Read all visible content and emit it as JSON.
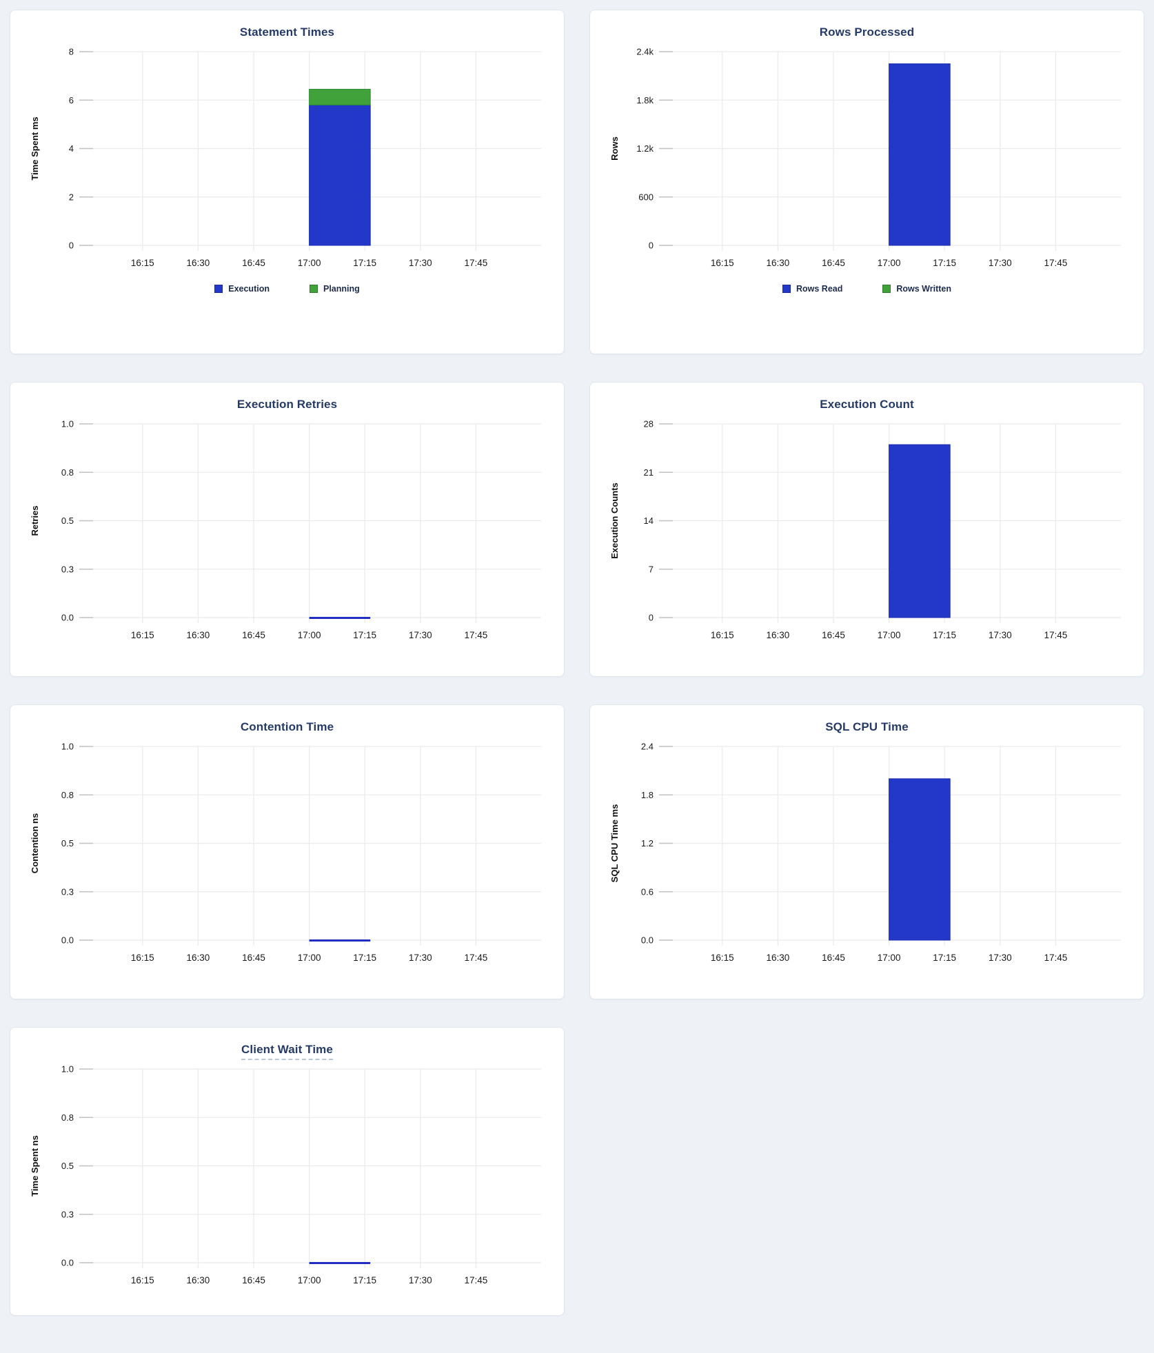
{
  "page": {
    "background": "#eef2f7",
    "panel_background": "#ffffff",
    "panel_border": "#e2e7ed",
    "title_color": "#263a66",
    "grid_color": "#ebebeb",
    "tick_stub_color": "#c2c2c2",
    "tick_label_color": "#1a1a1a",
    "bar_blue": "#2338c8",
    "bar_green": "#41a23c",
    "zero_line_color": "#222ec2"
  },
  "chart_data": [
    {
      "type": "bar",
      "title": "Statement Times",
      "ylabel": "Time Spent ms",
      "ymax": 8,
      "yticks": [
        "0",
        "2",
        "4",
        "6",
        "8"
      ],
      "xticks": [
        "16:15",
        "16:30",
        "16:45",
        "17:00",
        "17:15",
        "17:30",
        "17:45"
      ],
      "bar_span": {
        "from": "17:00",
        "to": "17:15"
      },
      "series": [
        {
          "name": "Execution",
          "value": 5.8,
          "color": "#2338c8",
          "border": "#1b2cb0"
        },
        {
          "name": "Planning",
          "value": 0.65,
          "color": "#41a23c",
          "border": "#2f8a33"
        }
      ],
      "legend": [
        {
          "label": "Execution",
          "color": "#2338c8"
        },
        {
          "label": "Planning",
          "color": "#41a23c"
        }
      ],
      "zero_marker": false,
      "grid": true,
      "legend_position": "bottom"
    },
    {
      "type": "bar",
      "title": "Rows Processed",
      "ylabel": "Rows",
      "ymax": 2400,
      "yticks": [
        "0",
        "600",
        "1.2k",
        "1.8k",
        "2.4k"
      ],
      "xticks": [
        "16:15",
        "16:30",
        "16:45",
        "17:00",
        "17:15",
        "17:30",
        "17:45"
      ],
      "bar_span": {
        "from": "17:00",
        "to": "17:15"
      },
      "series": [
        {
          "name": "Rows Read",
          "value": 2250,
          "color": "#2338c8",
          "border": "#1b2cb0"
        },
        {
          "name": "Rows Written",
          "value": 0,
          "color": "#41a23c",
          "border": "#2f8a33"
        }
      ],
      "legend": [
        {
          "label": "Rows Read",
          "color": "#2338c8"
        },
        {
          "label": "Rows Written",
          "color": "#41a23c"
        }
      ],
      "zero_marker": false,
      "grid": true,
      "legend_position": "bottom"
    },
    {
      "type": "bar",
      "title": "Execution Retries",
      "ylabel": "Retries",
      "ymax": 1.0,
      "yticks": [
        "0.0",
        "0.3",
        "0.5",
        "0.8",
        "1.0"
      ],
      "xticks": [
        "16:15",
        "16:30",
        "16:45",
        "17:00",
        "17:15",
        "17:30",
        "17:45"
      ],
      "bar_span": {
        "from": "17:00",
        "to": "17:15"
      },
      "series": [
        {
          "name": "Retries",
          "value": 0,
          "color": "#2338c8",
          "border": "#1b2cb0"
        }
      ],
      "legend": null,
      "zero_marker": true,
      "grid": true,
      "legend_position": "none"
    },
    {
      "type": "bar",
      "title": "Execution Count",
      "ylabel": "Execution Counts",
      "ymax": 28,
      "yticks": [
        "0",
        "7",
        "14",
        "21",
        "28"
      ],
      "xticks": [
        "16:15",
        "16:30",
        "16:45",
        "17:00",
        "17:15",
        "17:30",
        "17:45"
      ],
      "bar_span": {
        "from": "17:00",
        "to": "17:15"
      },
      "series": [
        {
          "name": "Execution Count",
          "value": 25,
          "color": "#2338c8",
          "border": "#1b2cb0"
        }
      ],
      "legend": null,
      "zero_marker": false,
      "grid": true,
      "legend_position": "none"
    },
    {
      "type": "bar",
      "title": "Contention Time",
      "ylabel": "Contention ns",
      "ymax": 1.0,
      "yticks": [
        "0.0",
        "0.3",
        "0.5",
        "0.8",
        "1.0"
      ],
      "xticks": [
        "16:15",
        "16:30",
        "16:45",
        "17:00",
        "17:15",
        "17:30",
        "17:45"
      ],
      "bar_span": {
        "from": "17:00",
        "to": "17:15"
      },
      "series": [
        {
          "name": "Contention",
          "value": 0,
          "color": "#2338c8",
          "border": "#1b2cb0"
        }
      ],
      "legend": null,
      "zero_marker": true,
      "grid": true,
      "legend_position": "none"
    },
    {
      "type": "bar",
      "title": "SQL CPU Time",
      "ylabel": "SQL CPU Time ms",
      "ymax": 2.4,
      "yticks": [
        "0.0",
        "0.6",
        "1.2",
        "1.8",
        "2.4"
      ],
      "xticks": [
        "16:15",
        "16:30",
        "16:45",
        "17:00",
        "17:15",
        "17:30",
        "17:45"
      ],
      "bar_span": {
        "from": "17:00",
        "to": "17:15"
      },
      "series": [
        {
          "name": "SQL CPU Time",
          "value": 2.0,
          "color": "#2338c8",
          "border": "#1b2cb0"
        }
      ],
      "legend": null,
      "zero_marker": false,
      "grid": true,
      "legend_position": "none"
    },
    {
      "type": "bar",
      "title": "Client Wait Time",
      "title_tooltip_underline": true,
      "ylabel": "Time Spent ns",
      "ymax": 1.0,
      "yticks": [
        "0.0",
        "0.3",
        "0.5",
        "0.8",
        "1.0"
      ],
      "xticks": [
        "16:15",
        "16:30",
        "16:45",
        "17:00",
        "17:15",
        "17:30",
        "17:45"
      ],
      "bar_span": {
        "from": "17:00",
        "to": "17:15"
      },
      "series": [
        {
          "name": "Client Wait",
          "value": 0,
          "color": "#2338c8",
          "border": "#1b2cb0"
        }
      ],
      "legend": null,
      "zero_marker": true,
      "grid": true,
      "legend_position": "none"
    }
  ]
}
